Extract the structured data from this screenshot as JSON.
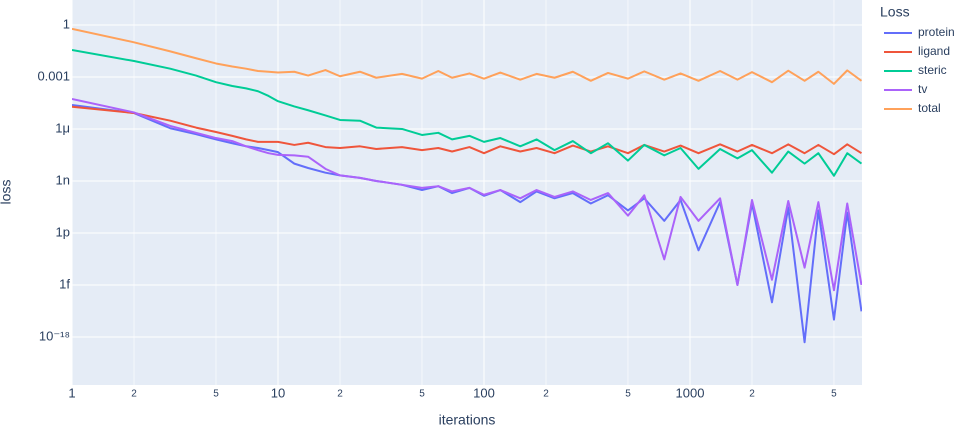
{
  "chart_data": {
    "type": "line",
    "log_x": true,
    "log_y": true,
    "grid": true,
    "x_label": "iterations",
    "y_label": "loss",
    "legend_title": "Loss",
    "legend_position": "right",
    "xlim": [
      1,
      6840
    ],
    "ylim": [
      1.7e-21,
      27.5
    ],
    "xticks": [
      1,
      {
        "value": 2,
        "label": "2"
      },
      {
        "value": 5,
        "label": "5"
      },
      10,
      {
        "value": 20,
        "label": "2"
      },
      {
        "value": 50,
        "label": "5"
      },
      100,
      {
        "value": 200,
        "label": "2"
      },
      {
        "value": 500,
        "label": "5"
      },
      1000,
      {
        "value": 2000,
        "label": "2"
      },
      {
        "value": 5000,
        "label": "5"
      }
    ],
    "yticks": [
      1,
      0.001,
      {
        "value": 1e-06,
        "label": "1μ"
      },
      {
        "value": 1e-09,
        "label": "1n"
      },
      {
        "value": 1e-12,
        "label": "1p"
      },
      {
        "value": 1e-15,
        "label": "1f"
      },
      {
        "value": 1e-18,
        "label": "10⁻¹⁸"
      }
    ],
    "x": [
      1,
      2,
      3,
      4,
      5,
      6,
      7,
      8,
      9,
      10,
      12,
      14,
      17,
      20,
      25,
      30,
      40,
      50,
      60,
      70,
      85,
      100,
      120,
      150,
      180,
      220,
      270,
      330,
      400,
      500,
      600,
      750,
      900,
      1100,
      1400,
      1700,
      2000,
      2500,
      3000,
      3600,
      4200,
      5000,
      5800,
      6800
    ],
    "series": [
      {
        "name": "protein",
        "color": "#636efa",
        "values": [
          2.4e-05,
          8.3e-06,
          1.1e-06,
          5e-07,
          2.5e-07,
          1.5e-07,
          1e-07,
          8e-08,
          6e-08,
          4.6e-08,
          1e-08,
          5.6e-09,
          3e-09,
          2.1e-09,
          1.5e-09,
          1e-09,
          6e-10,
          3e-10,
          5e-10,
          2e-10,
          4e-10,
          1.4e-10,
          3e-10,
          6e-11,
          2.5e-10,
          1e-10,
          2e-10,
          5e-11,
          1.5e-10,
          2e-11,
          1e-10,
          5e-12,
          8e-11,
          1e-13,
          6e-11,
          1e-15,
          5e-11,
          1e-16,
          3e-11,
          5e-19,
          2e-11,
          1e-17,
          1.5e-11,
          3e-17
        ]
      },
      {
        "name": "ligand",
        "color": "#ef553b",
        "values": [
          1.9e-05,
          8.3e-06,
          3e-06,
          1.2e-06,
          6.7e-07,
          4e-07,
          2.5e-07,
          1.8e-07,
          1.8e-07,
          1.8e-07,
          1.2e-07,
          1.6e-07,
          9e-08,
          8e-08,
          1e-07,
          7e-08,
          9e-08,
          6e-08,
          8e-08,
          5e-08,
          9e-08,
          4e-08,
          1e-07,
          5e-08,
          8e-08,
          4e-08,
          1.1e-07,
          5e-08,
          1e-07,
          4e-08,
          1.2e-07,
          5e-08,
          1.1e-07,
          4e-08,
          1.3e-07,
          5e-08,
          1.2e-07,
          4e-08,
          1.3e-07,
          4e-08,
          1.2e-07,
          3.5e-08,
          1.3e-07,
          4e-08
        ]
      },
      {
        "name": "steric",
        "color": "#00cc96",
        "values": [
          0.036,
          0.0083,
          0.003,
          0.0012,
          0.0005,
          0.0003,
          0.00022,
          0.00015,
          8e-05,
          4e-05,
          2e-05,
          1.2e-05,
          6e-06,
          3.3e-06,
          3e-06,
          1.2e-06,
          1e-06,
          4.5e-07,
          6e-07,
          2.5e-07,
          4e-07,
          1.8e-07,
          3e-07,
          1e-07,
          2.5e-07,
          6e-08,
          2e-07,
          4e-08,
          1.5e-07,
          1.5e-08,
          1.2e-07,
          3e-08,
          8e-08,
          5e-09,
          7e-08,
          2e-08,
          6e-08,
          3e-09,
          5e-08,
          1e-08,
          4e-08,
          2e-09,
          4e-08,
          1e-08
        ]
      },
      {
        "name": "tv",
        "color": "#ab63fa",
        "values": [
          5.4e-05,
          9e-06,
          1.5e-06,
          6e-07,
          3e-07,
          2e-07,
          1e-07,
          6e-08,
          4e-08,
          3.2e-08,
          3e-08,
          2.5e-08,
          5e-09,
          2.1e-09,
          1.5e-09,
          1e-09,
          6e-10,
          4e-10,
          5e-10,
          2.5e-10,
          4e-10,
          1.6e-10,
          3e-10,
          1e-10,
          3e-10,
          1.2e-10,
          2.5e-10,
          8e-11,
          2e-10,
          1e-11,
          1.5e-10,
          3e-14,
          1.2e-10,
          5e-12,
          1e-10,
          1e-15,
          8e-11,
          2e-15,
          7e-11,
          1e-14,
          6e-11,
          5e-16,
          5e-11,
          1e-15
        ]
      },
      {
        "name": "total",
        "color": "#ffa15a",
        "values": [
          0.6,
          0.1,
          0.03,
          0.012,
          0.006,
          0.004,
          0.003,
          0.0022,
          0.002,
          0.0018,
          0.002,
          0.0012,
          0.0025,
          0.0011,
          0.002,
          0.0009,
          0.0015,
          0.0008,
          0.0022,
          0.0009,
          0.0016,
          0.0008,
          0.0018,
          0.0007,
          0.0015,
          0.0009,
          0.002,
          0.0006,
          0.0017,
          0.0008,
          0.0021,
          0.0007,
          0.0016,
          0.0006,
          0.0022,
          0.0007,
          0.0019,
          0.0005,
          0.0023,
          0.0006,
          0.002,
          0.0004,
          0.0024,
          0.0006
        ]
      }
    ]
  }
}
